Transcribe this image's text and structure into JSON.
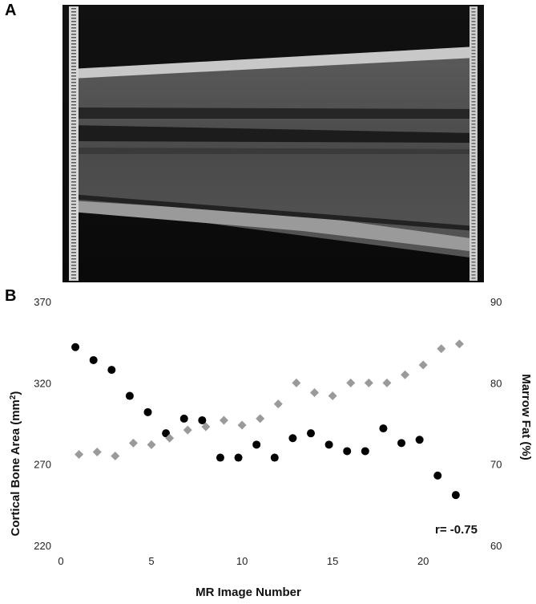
{
  "panels": {
    "a": "A",
    "b": "B"
  },
  "chart_data": {
    "type": "scatter",
    "xlabel": "MR Image Number",
    "ylabel_left": "Cortical Bone Area (mm",
    "ylabel_left_sup": "2",
    "ylabel_left_end": ")",
    "ylabel_right": "Marrow Fat (%)",
    "xlim": [
      0,
      23
    ],
    "ylim_left": [
      220,
      370
    ],
    "ylim_right": [
      60,
      90
    ],
    "x_ticks": [
      "0",
      "5",
      "10",
      "15",
      "20"
    ],
    "y_left_ticks": [
      "220",
      "270",
      "320",
      "370"
    ],
    "y_right_ticks": [
      "60",
      "70",
      "80",
      "90"
    ],
    "grid": false,
    "annotation": "r= -0.75",
    "series": [
      {
        "axis": "left",
        "marker": "circle",
        "color": "#000000",
        "x": [
          0.8,
          1.8,
          2.8,
          3.8,
          4.8,
          5.8,
          6.8,
          7.8,
          8.8,
          9.8,
          10.8,
          11.8,
          12.8,
          13.8,
          14.8,
          15.8,
          16.8,
          17.8,
          18.8,
          19.8,
          20.8,
          21.8
        ],
        "y": [
          342,
          334,
          328,
          312,
          302,
          289,
          298,
          297,
          274,
          274,
          282,
          274,
          286,
          289,
          282,
          278,
          278,
          292,
          283,
          285,
          263,
          251
        ]
      },
      {
        "axis": "right",
        "marker": "diamond",
        "color": "#9a9a9a",
        "x": [
          1,
          2,
          3,
          4,
          5,
          6,
          7,
          8,
          9,
          10,
          11,
          12,
          13,
          14,
          15,
          16,
          17,
          18,
          19,
          20,
          21,
          22
        ],
        "y": [
          71.2,
          71.5,
          71.0,
          72.6,
          72.4,
          73.2,
          74.2,
          74.6,
          75.4,
          74.8,
          75.6,
          77.4,
          80.0,
          78.8,
          78.4,
          80.0,
          80.0,
          80.0,
          81.0,
          82.2,
          84.2,
          84.8
        ]
      }
    ]
  }
}
